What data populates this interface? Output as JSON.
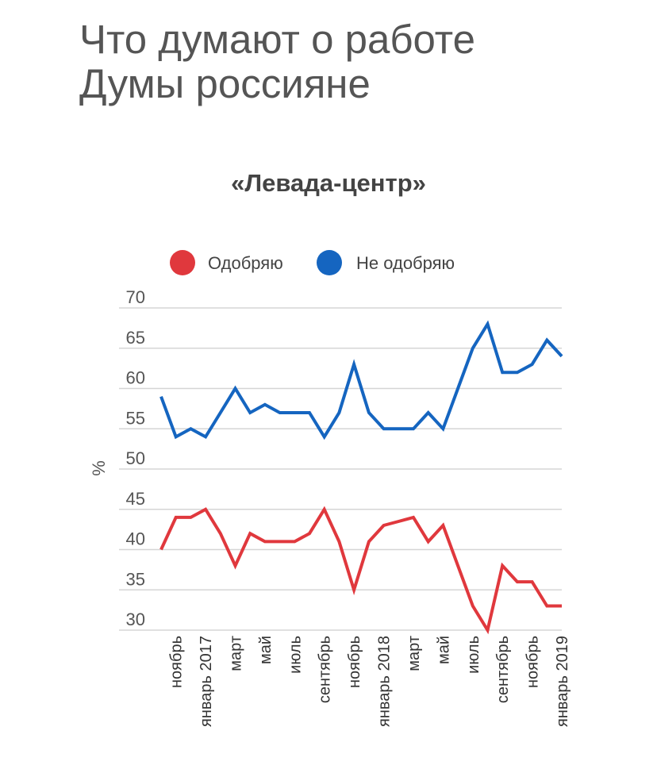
{
  "title": {
    "line1": "Что думают о работе",
    "line2": "Думы россияне"
  },
  "subtitle": "«Левада-центр»",
  "chart_data": {
    "type": "line",
    "ylabel": "%",
    "ylim": [
      30,
      70
    ],
    "yticks": [
      30,
      35,
      40,
      45,
      50,
      55,
      60,
      65,
      70
    ],
    "grid": true,
    "legend_position": "top",
    "x_tick_labels": [
      {
        "index": 1,
        "label": "ноябрь"
      },
      {
        "index": 3,
        "label": "январь 2017"
      },
      {
        "index": 5,
        "label": "март"
      },
      {
        "index": 7,
        "label": "май"
      },
      {
        "index": 9,
        "label": "июль"
      },
      {
        "index": 11,
        "label": "сентябрь"
      },
      {
        "index": 13,
        "label": "ноябрь"
      },
      {
        "index": 15,
        "label": "январь 2018"
      },
      {
        "index": 17,
        "label": "март"
      },
      {
        "index": 19,
        "label": "май"
      },
      {
        "index": 21,
        "label": "июль"
      },
      {
        "index": 23,
        "label": "сентябрь"
      },
      {
        "index": 25,
        "label": "ноябрь"
      },
      {
        "index": 27,
        "label": "январь 2019"
      }
    ],
    "series": [
      {
        "name": "Одобряю",
        "color": "#e0383d",
        "values": [
          40,
          44,
          44,
          45,
          42,
          38,
          42,
          41,
          41,
          41,
          42,
          45,
          41,
          35,
          41,
          43,
          43.5,
          44,
          41,
          43,
          38,
          33,
          30,
          38,
          36,
          36,
          33,
          33
        ]
      },
      {
        "name": "Не одобряю",
        "color": "#1565c0",
        "values": [
          59,
          54,
          55,
          54,
          57,
          60,
          57,
          58,
          57,
          57,
          57,
          54,
          57,
          63,
          57,
          55,
          55,
          55,
          57,
          55,
          60,
          65,
          68,
          62,
          62,
          63,
          66,
          64
        ]
      }
    ]
  }
}
